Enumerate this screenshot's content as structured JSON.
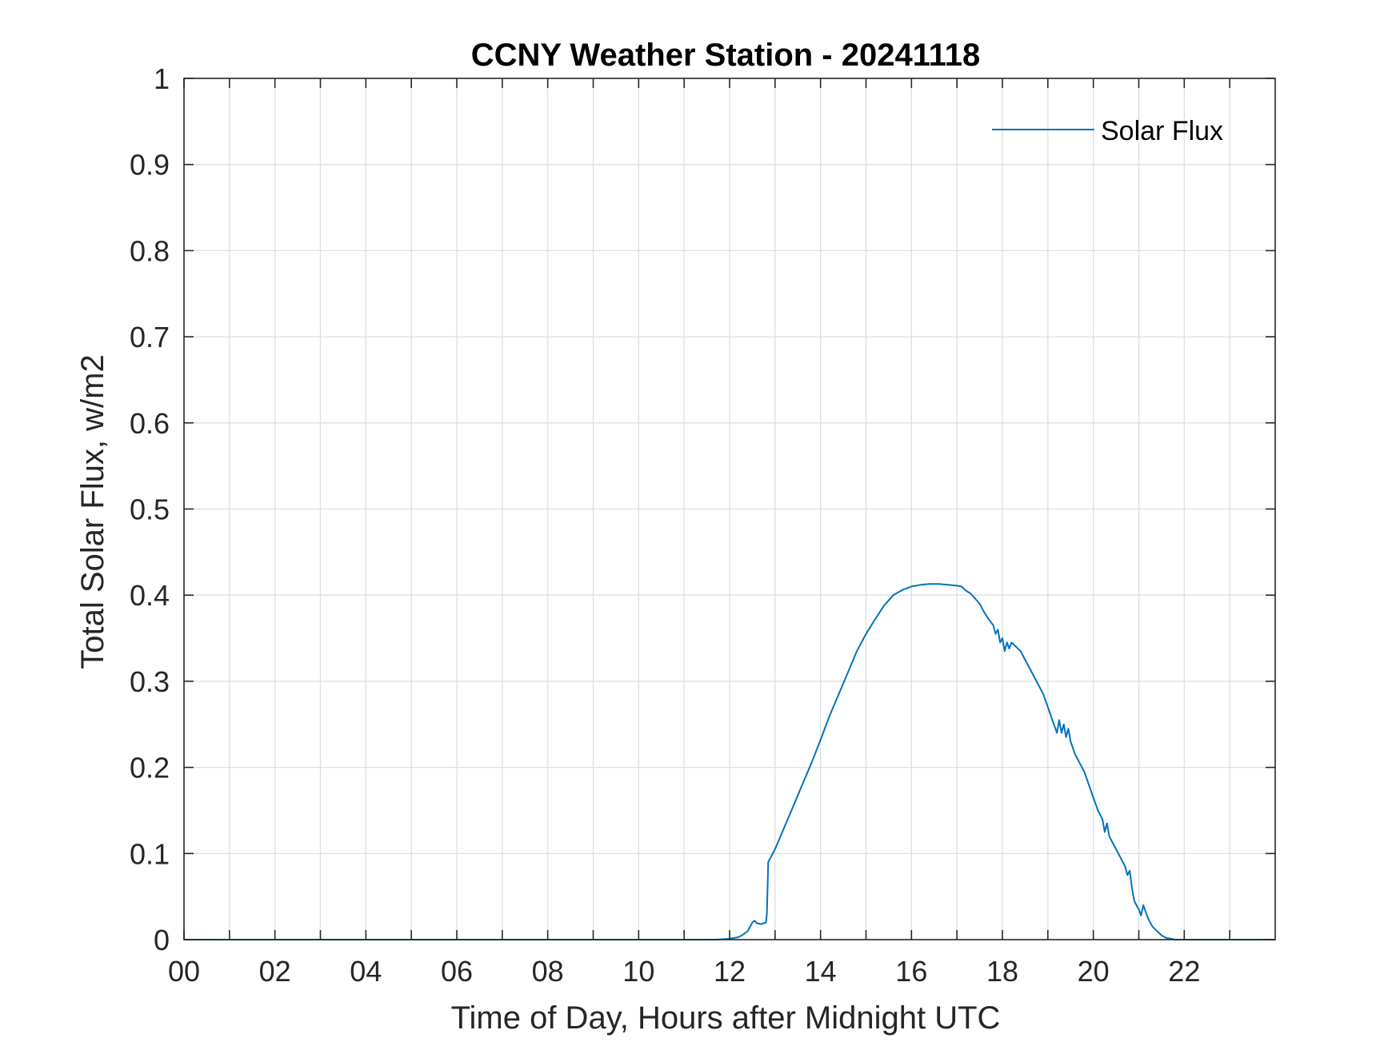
{
  "chart_data": {
    "type": "line",
    "title": "CCNY Weather Station - 20241118",
    "xlabel": "Time of Day, Hours after Midnight UTC",
    "ylabel": "Total Solar Flux, w/m2",
    "xlim": [
      0,
      24
    ],
    "ylim": [
      0,
      1
    ],
    "x_ticks": [
      0,
      2,
      4,
      6,
      8,
      10,
      12,
      14,
      16,
      18,
      20,
      22
    ],
    "x_tick_labels": [
      "00",
      "02",
      "04",
      "06",
      "08",
      "10",
      "12",
      "14",
      "16",
      "18",
      "20",
      "22"
    ],
    "x_minor_ticks": [
      1,
      3,
      5,
      7,
      9,
      11,
      13,
      15,
      17,
      19,
      21,
      23
    ],
    "y_ticks": [
      0,
      0.1,
      0.2,
      0.3,
      0.4,
      0.5,
      0.6,
      0.7,
      0.8,
      0.9,
      1
    ],
    "y_tick_labels": [
      "0",
      "0.1",
      "0.2",
      "0.3",
      "0.4",
      "0.5",
      "0.6",
      "0.7",
      "0.8",
      "0.9",
      "1"
    ],
    "grid": true,
    "legend": {
      "position": "top-right",
      "entries": [
        "Solar Flux"
      ]
    },
    "colors": {
      "series": "#0072BD",
      "axis": "#262626",
      "grid": "#dfdfdf"
    },
    "series": [
      {
        "name": "Solar Flux",
        "x": [
          0,
          11.7,
          12.0,
          12.2,
          12.3,
          12.4,
          12.45,
          12.5,
          12.55,
          12.6,
          12.7,
          12.8,
          12.82,
          12.85,
          13.0,
          13.2,
          13.4,
          13.6,
          13.8,
          14.0,
          14.2,
          14.4,
          14.6,
          14.8,
          15.0,
          15.2,
          15.4,
          15.6,
          15.8,
          16.0,
          16.2,
          16.4,
          16.6,
          16.8,
          17.0,
          17.1,
          17.2,
          17.3,
          17.4,
          17.5,
          17.6,
          17.7,
          17.8,
          17.85,
          17.9,
          17.95,
          18.0,
          18.05,
          18.1,
          18.15,
          18.2,
          18.3,
          18.4,
          18.5,
          18.6,
          18.7,
          18.8,
          18.9,
          19.0,
          19.1,
          19.2,
          19.25,
          19.3,
          19.35,
          19.4,
          19.45,
          19.5,
          19.6,
          19.7,
          19.75,
          19.8,
          19.9,
          20.0,
          20.1,
          20.2,
          20.25,
          20.3,
          20.35,
          20.4,
          20.5,
          20.6,
          20.7,
          20.75,
          20.8,
          20.85,
          20.9,
          21.0,
          21.05,
          21.1,
          21.2,
          21.3,
          21.4,
          21.5,
          21.6,
          21.7,
          21.8,
          21.9,
          22.0,
          24.0
        ],
        "values": [
          0,
          0,
          0.001,
          0.003,
          0.006,
          0.01,
          0.015,
          0.02,
          0.022,
          0.019,
          0.018,
          0.02,
          0.03,
          0.09,
          0.105,
          0.13,
          0.155,
          0.18,
          0.205,
          0.232,
          0.26,
          0.285,
          0.31,
          0.335,
          0.355,
          0.372,
          0.388,
          0.4,
          0.406,
          0.41,
          0.412,
          0.413,
          0.413,
          0.412,
          0.411,
          0.41,
          0.405,
          0.402,
          0.396,
          0.39,
          0.38,
          0.372,
          0.365,
          0.355,
          0.36,
          0.345,
          0.35,
          0.335,
          0.345,
          0.338,
          0.345,
          0.34,
          0.335,
          0.325,
          0.315,
          0.305,
          0.295,
          0.285,
          0.27,
          0.255,
          0.24,
          0.255,
          0.24,
          0.25,
          0.235,
          0.245,
          0.23,
          0.215,
          0.205,
          0.2,
          0.195,
          0.18,
          0.165,
          0.15,
          0.14,
          0.125,
          0.135,
          0.12,
          0.115,
          0.105,
          0.095,
          0.085,
          0.075,
          0.08,
          0.06,
          0.045,
          0.035,
          0.028,
          0.04,
          0.025,
          0.015,
          0.01,
          0.005,
          0.002,
          0.001,
          0.0,
          0.0,
          0,
          0
        ]
      }
    ]
  }
}
